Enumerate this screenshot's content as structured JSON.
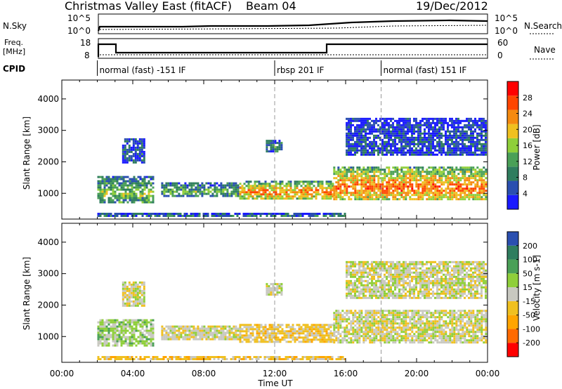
{
  "header": {
    "title": "Christmas Valley East (fitACF)",
    "beam": "Beam 04",
    "date": "19/Dec/2012"
  },
  "strip_labels": {
    "nsky": "N.Sky",
    "nsky_ticks": [
      "10^5",
      "10^0"
    ],
    "nsearch": "N.Search",
    "nsearch_ticks": [
      "10^5",
      "10^0"
    ],
    "freq": "Freq.",
    "freq_unit": "[MHz]",
    "freq_ticks": [
      "18",
      "8"
    ],
    "nave": "Nave",
    "nave_ticks": [
      "60",
      "0"
    ],
    "cpid": "CPID"
  },
  "cpid_segments": [
    {
      "label": "normal (fast) -151 IF",
      "start_hour": 2.0
    },
    {
      "label": "rbsp 201 IF",
      "start_hour": 12.0
    },
    {
      "label": "normal (fast) 151 IF",
      "start_hour": 18.0
    }
  ],
  "x_axis": {
    "label": "Time UT",
    "ticks": [
      "00:00",
      "04:00",
      "08:00",
      "12:00",
      "16:00",
      "20:00",
      "00:00"
    ],
    "range_hours": [
      0,
      24
    ]
  },
  "y_axis": {
    "label": "Slant Range [km]",
    "ticks": [
      "1000",
      "2000",
      "3000",
      "4000"
    ],
    "range_km": [
      180,
      4600
    ]
  },
  "chart_data": [
    {
      "type": "heatmap",
      "name": "power",
      "colorbar_label": "Power [dB]",
      "colorbar_ticks": [
        "4",
        "8",
        "12",
        "16",
        "20",
        "24",
        "28"
      ],
      "colorbar_range": [
        0,
        30
      ],
      "colors": [
        "#1a1aff",
        "#2a4fb0",
        "#2f7d5e",
        "#4aa057",
        "#8fcf3a",
        "#f0c020",
        "#f58a10",
        "#ff4500",
        "#ff0000"
      ],
      "regions": [
        {
          "t0": 2.0,
          "t1": 5.2,
          "r0": 700,
          "r1": 1550,
          "level": 14
        },
        {
          "t0": 3.4,
          "t1": 4.6,
          "r0": 1950,
          "r1": 2750,
          "level": 6
        },
        {
          "t0": 5.6,
          "t1": 10.0,
          "r0": 900,
          "r1": 1350,
          "level": 12
        },
        {
          "t0": 10.0,
          "t1": 15.3,
          "r0": 850,
          "r1": 1400,
          "level": 22
        },
        {
          "t0": 11.5,
          "t1": 12.4,
          "r0": 2350,
          "r1": 2700,
          "level": 10
        },
        {
          "t0": 15.3,
          "t1": 23.9,
          "r0": 800,
          "r1": 1850,
          "level": 24
        },
        {
          "t0": 16.0,
          "t1": 23.9,
          "r0": 2200,
          "r1": 3400,
          "level": 5
        },
        {
          "t0": 2.0,
          "t1": 16.0,
          "r0": 250,
          "r1": 380,
          "level": 8
        }
      ]
    },
    {
      "type": "heatmap",
      "name": "velocity",
      "colorbar_label": "Velocity [m s-1]",
      "colorbar_ticks": [
        "200",
        "100",
        "50",
        "15",
        "-15",
        "-50",
        "-100",
        "-200"
      ],
      "colorbar_range": [
        -250,
        250
      ],
      "colors": [
        "#ff0000",
        "#ff6a00",
        "#ffa500",
        "#f0c020",
        "#c8c8c0",
        "#8fcf3a",
        "#4aa057",
        "#2f7d5e",
        "#2a4fb0"
      ],
      "regions": [
        {
          "t0": 2.0,
          "t1": 5.2,
          "r0": 700,
          "r1": 1550,
          "level": 40
        },
        {
          "t0": 3.4,
          "t1": 4.6,
          "r0": 1950,
          "r1": 2750,
          "level": 0
        },
        {
          "t0": 5.6,
          "t1": 10.0,
          "r0": 900,
          "r1": 1350,
          "level": 0
        },
        {
          "t0": 10.0,
          "t1": 15.3,
          "r0": 850,
          "r1": 1400,
          "level": -40
        },
        {
          "t0": 11.5,
          "t1": 12.4,
          "r0": 2350,
          "r1": 2700,
          "level": 0
        },
        {
          "t0": 15.3,
          "t1": 23.9,
          "r0": 800,
          "r1": 1850,
          "level": 0
        },
        {
          "t0": 16.0,
          "t1": 23.9,
          "r0": 2200,
          "r1": 3400,
          "level": 0
        },
        {
          "t0": 2.0,
          "t1": 16.0,
          "r0": 250,
          "r1": 380,
          "level": -60
        }
      ]
    }
  ]
}
